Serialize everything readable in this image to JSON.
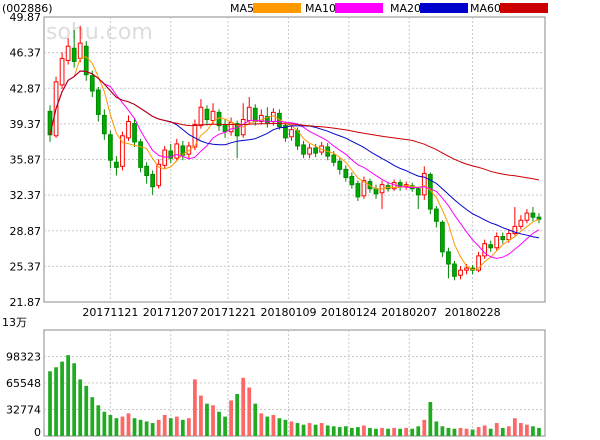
{
  "chart_data": {
    "type": "candlestick",
    "stock_code": "(002886)",
    "watermark": "sohu.com",
    "ma_legend": [
      {
        "name": "MA5",
        "color": "#ff9900"
      },
      {
        "name": "MA10",
        "color": "#ff00ff"
      },
      {
        "name": "MA20",
        "color": "#0000cc"
      },
      {
        "name": "MA60",
        "color": "#cc0000"
      }
    ],
    "colors": {
      "up": "#ff0000",
      "down": "#008800",
      "up_fill": "#ffffff",
      "down_fill": "#00aa00",
      "up_volume": "#ff6666",
      "down_volume": "#22aa22"
    },
    "price_ticks": [
      "49.87",
      "46.37",
      "42.87",
      "39.37",
      "35.87",
      "32.37",
      "28.87",
      "25.37",
      "21.87"
    ],
    "price_range": [
      21.87,
      49.87
    ],
    "date_ticks": [
      "20171121",
      "20171207",
      "20171221",
      "20180109",
      "20180124",
      "20180207",
      "20180228"
    ],
    "volume_unit": "13万",
    "volume_ticks": [
      "98323",
      "65548",
      "32774",
      "0"
    ],
    "volume_range": [
      0,
      131097
    ],
    "candles": [
      [
        40.6,
        38.3,
        41.2,
        37.6
      ],
      [
        38.2,
        43.5,
        44.0,
        38.0
      ],
      [
        43.2,
        45.8,
        46.4,
        42.8
      ],
      [
        45.6,
        47.0,
        47.8,
        45.2
      ],
      [
        46.8,
        45.5,
        48.6,
        44.9
      ],
      [
        45.8,
        47.3,
        49.0,
        45.4
      ],
      [
        47.0,
        44.2,
        47.5,
        43.6
      ],
      [
        44.1,
        42.6,
        44.6,
        42.0
      ],
      [
        42.7,
        40.3,
        43.0,
        39.6
      ],
      [
        40.2,
        38.4,
        40.8,
        37.8
      ],
      [
        38.3,
        35.8,
        38.7,
        35.0
      ],
      [
        35.6,
        35.1,
        36.2,
        34.3
      ],
      [
        35.2,
        38.2,
        38.6,
        34.8
      ],
      [
        38.0,
        39.6,
        40.2,
        37.7
      ],
      [
        39.4,
        37.6,
        39.9,
        37.1
      ],
      [
        37.6,
        35.1,
        37.9,
        34.6
      ],
      [
        35.2,
        34.3,
        35.6,
        33.5
      ],
      [
        34.4,
        33.2,
        34.8,
        32.4
      ],
      [
        33.3,
        35.4,
        35.9,
        33.0
      ],
      [
        35.3,
        36.8,
        37.2,
        35.0
      ],
      [
        36.7,
        36.0,
        37.4,
        35.5
      ],
      [
        36.0,
        37.4,
        37.9,
        35.7
      ],
      [
        37.2,
        36.3,
        37.7,
        35.8
      ],
      [
        36.4,
        37.2,
        37.6,
        35.9
      ],
      [
        37.1,
        39.3,
        39.8,
        36.8
      ],
      [
        39.2,
        41.0,
        41.8,
        38.9
      ],
      [
        40.8,
        39.8,
        41.2,
        39.2
      ],
      [
        39.7,
        40.6,
        41.4,
        39.3
      ],
      [
        40.5,
        39.2,
        40.8,
        38.7
      ],
      [
        39.3,
        38.6,
        39.8,
        38.0
      ],
      [
        38.6,
        39.5,
        40.0,
        38.2
      ],
      [
        39.4,
        38.2,
        39.7,
        36.0
      ],
      [
        38.3,
        39.8,
        41.4,
        38.0
      ],
      [
        39.7,
        41.0,
        42.0,
        39.3
      ],
      [
        40.9,
        39.6,
        41.3,
        39.2
      ],
      [
        39.6,
        40.2,
        40.8,
        39.3
      ],
      [
        40.1,
        39.5,
        41.0,
        39.0
      ],
      [
        39.6,
        40.5,
        40.9,
        39.2
      ],
      [
        40.4,
        39.1,
        40.8,
        38.8
      ],
      [
        39.2,
        38.0,
        39.6,
        37.6
      ],
      [
        38.1,
        38.8,
        39.2,
        37.7
      ],
      [
        38.7,
        37.2,
        39.0,
        36.8
      ],
      [
        37.3,
        36.4,
        37.7,
        36.0
      ],
      [
        36.4,
        37.0,
        37.4,
        36.0
      ],
      [
        37.0,
        36.5,
        37.4,
        36.1
      ],
      [
        36.6,
        37.2,
        37.6,
        36.3
      ],
      [
        37.1,
        36.2,
        37.5,
        35.8
      ],
      [
        36.3,
        35.6,
        36.7,
        35.2
      ],
      [
        35.7,
        34.9,
        36.0,
        34.4
      ],
      [
        34.9,
        34.1,
        35.3,
        33.7
      ],
      [
        34.2,
        33.4,
        34.6,
        33.0
      ],
      [
        33.5,
        32.2,
        33.8,
        31.8
      ],
      [
        32.3,
        33.8,
        34.2,
        32.0
      ],
      [
        33.7,
        33.0,
        34.0,
        32.6
      ],
      [
        33.0,
        32.5,
        33.4,
        32.0
      ],
      [
        32.6,
        33.4,
        33.8,
        31.0
      ],
      [
        33.3,
        33.0,
        33.6,
        32.7
      ],
      [
        33.0,
        33.6,
        33.9,
        32.8
      ],
      [
        33.6,
        33.2,
        33.9,
        32.8
      ],
      [
        33.2,
        33.4,
        33.7,
        32.9
      ],
      [
        33.3,
        33.0,
        33.6,
        32.7
      ],
      [
        33.0,
        32.4,
        33.2,
        31.0
      ],
      [
        32.4,
        34.5,
        35.2,
        31.9
      ],
      [
        34.4,
        31.0,
        34.6,
        30.5
      ],
      [
        31.0,
        29.8,
        31.3,
        29.2
      ],
      [
        29.7,
        26.8,
        29.9,
        26.3
      ],
      [
        26.8,
        25.6,
        27.2,
        24.2
      ],
      [
        25.6,
        24.4,
        25.9,
        24.0
      ],
      [
        24.5,
        25.0,
        25.4,
        24.1
      ],
      [
        25.0,
        25.2,
        25.6,
        24.6
      ],
      [
        25.2,
        25.0,
        25.5,
        24.6
      ],
      [
        25.0,
        26.4,
        26.8,
        24.8
      ],
      [
        26.4,
        27.6,
        28.0,
        26.1
      ],
      [
        27.5,
        27.2,
        27.9,
        26.8
      ],
      [
        27.2,
        28.3,
        28.7,
        26.9
      ],
      [
        28.3,
        28.0,
        28.7,
        27.6
      ],
      [
        28.0,
        28.6,
        29.0,
        27.7
      ],
      [
        28.6,
        29.3,
        31.2,
        28.4
      ],
      [
        29.3,
        29.9,
        30.4,
        29.0
      ],
      [
        29.9,
        30.6,
        31.0,
        29.6
      ],
      [
        30.6,
        30.2,
        31.2,
        29.8
      ],
      [
        30.2,
        30.0,
        30.6,
        29.6
      ]
    ],
    "volumes": [
      [
        80000,
        "down"
      ],
      [
        85000,
        "down"
      ],
      [
        92000,
        "down"
      ],
      [
        100000,
        "down"
      ],
      [
        90000,
        "down"
      ],
      [
        70000,
        "down"
      ],
      [
        62000,
        "down"
      ],
      [
        48000,
        "down"
      ],
      [
        38000,
        "down"
      ],
      [
        30000,
        "down"
      ],
      [
        26000,
        "down"
      ],
      [
        22000,
        "down"
      ],
      [
        24000,
        "up"
      ],
      [
        28000,
        "up"
      ],
      [
        22000,
        "down"
      ],
      [
        20000,
        "down"
      ],
      [
        18000,
        "down"
      ],
      [
        16000,
        "down"
      ],
      [
        20000,
        "up"
      ],
      [
        26000,
        "up"
      ],
      [
        22000,
        "down"
      ],
      [
        24000,
        "up"
      ],
      [
        20000,
        "down"
      ],
      [
        22000,
        "up"
      ],
      [
        70000,
        "up"
      ],
      [
        50000,
        "up"
      ],
      [
        40000,
        "down"
      ],
      [
        38000,
        "up"
      ],
      [
        30000,
        "down"
      ],
      [
        24000,
        "down"
      ],
      [
        44000,
        "up"
      ],
      [
        52000,
        "down"
      ],
      [
        72000,
        "up"
      ],
      [
        60000,
        "up"
      ],
      [
        40000,
        "down"
      ],
      [
        28000,
        "up"
      ],
      [
        24000,
        "down"
      ],
      [
        26000,
        "up"
      ],
      [
        22000,
        "down"
      ],
      [
        20000,
        "down"
      ],
      [
        18000,
        "up"
      ],
      [
        16000,
        "down"
      ],
      [
        14000,
        "down"
      ],
      [
        16000,
        "up"
      ],
      [
        14000,
        "down"
      ],
      [
        16000,
        "up"
      ],
      [
        13000,
        "down"
      ],
      [
        12000,
        "down"
      ],
      [
        11000,
        "down"
      ],
      [
        12000,
        "down"
      ],
      [
        10000,
        "down"
      ],
      [
        11000,
        "down"
      ],
      [
        13000,
        "up"
      ],
      [
        10000,
        "down"
      ],
      [
        9000,
        "down"
      ],
      [
        10000,
        "up"
      ],
      [
        9000,
        "down"
      ],
      [
        10000,
        "up"
      ],
      [
        9000,
        "down"
      ],
      [
        10000,
        "up"
      ],
      [
        9000,
        "down"
      ],
      [
        12000,
        "down"
      ],
      [
        20000,
        "up"
      ],
      [
        42000,
        "down"
      ],
      [
        18000,
        "down"
      ],
      [
        12000,
        "down"
      ],
      [
        10000,
        "down"
      ],
      [
        9000,
        "down"
      ],
      [
        10000,
        "up"
      ],
      [
        9000,
        "up"
      ],
      [
        8000,
        "down"
      ],
      [
        11000,
        "up"
      ],
      [
        13000,
        "up"
      ],
      [
        9000,
        "down"
      ],
      [
        16000,
        "up"
      ],
      [
        10000,
        "down"
      ],
      [
        12000,
        "up"
      ],
      [
        22000,
        "up"
      ],
      [
        16000,
        "up"
      ],
      [
        14000,
        "up"
      ],
      [
        12000,
        "down"
      ],
      [
        10000,
        "down"
      ]
    ]
  }
}
